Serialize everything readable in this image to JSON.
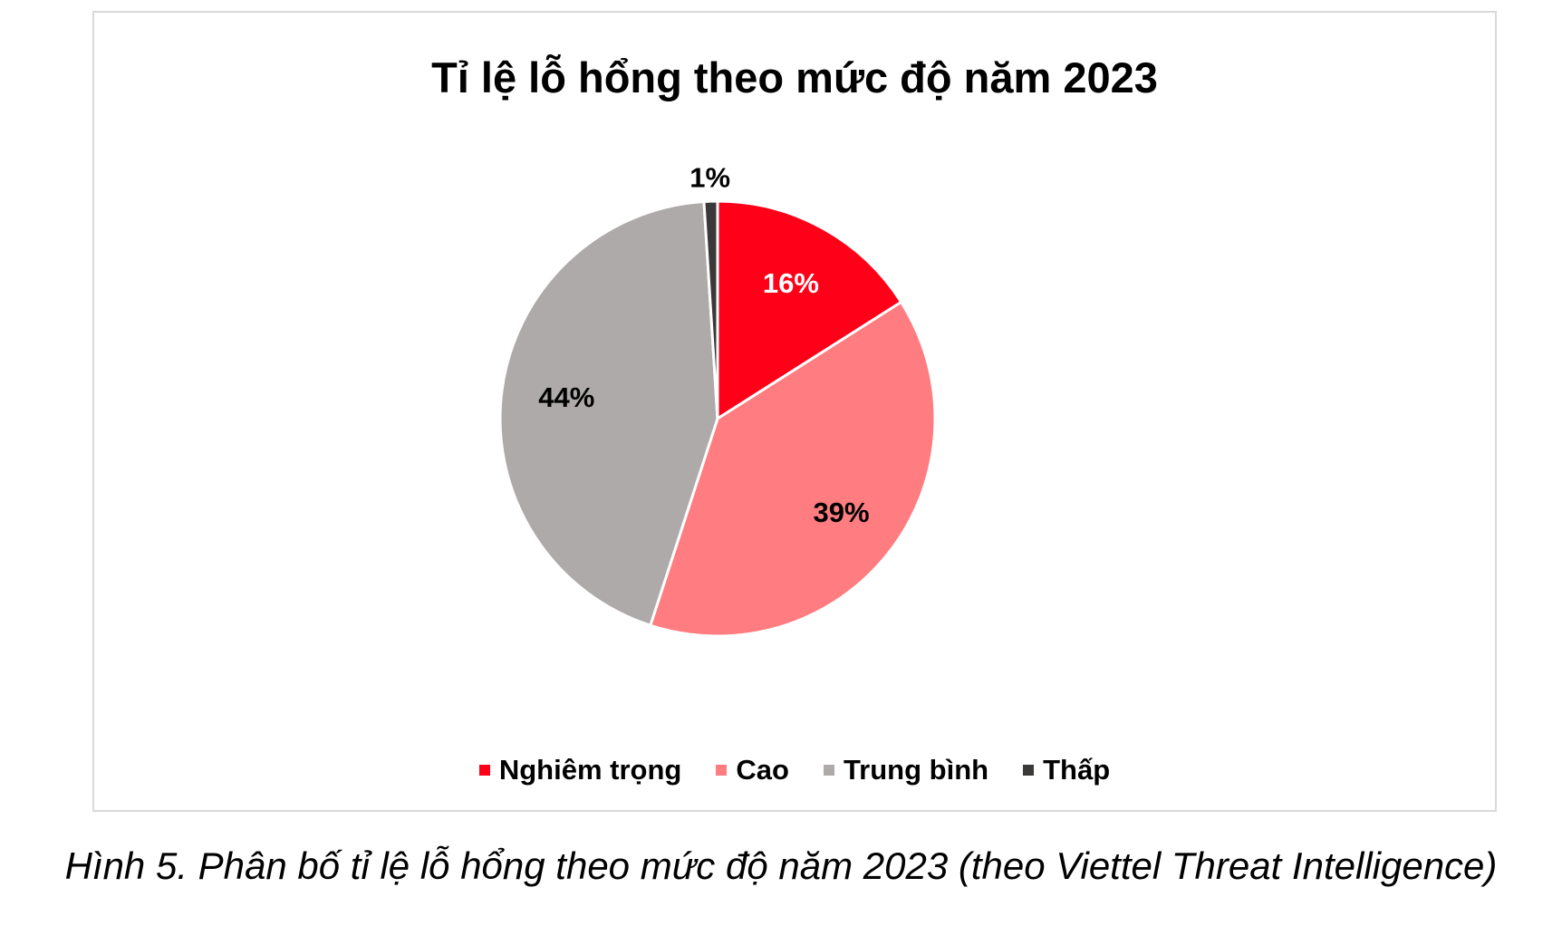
{
  "chart_data": {
    "type": "pie",
    "title": "Tỉ lệ lỗ hổng theo mức độ năm 2023",
    "categories": [
      "Nghiêm trọng",
      "Cao",
      "Trung bình",
      "Thấp"
    ],
    "values": [
      16,
      39,
      44,
      1
    ],
    "labels": [
      "16%",
      "39%",
      "44%",
      "1%"
    ],
    "colors": [
      "#ff0019",
      "#ff7c80",
      "#aeaaaa",
      "#3b3838"
    ],
    "label_colors": [
      "#ffffff",
      "#000000",
      "#000000",
      "#000000"
    ],
    "legend_position": "bottom"
  },
  "caption": "Hình 5. Phân bố tỉ lệ lỗ hổng theo mức độ năm 2023 (theo Viettel Threat Intelligence)"
}
